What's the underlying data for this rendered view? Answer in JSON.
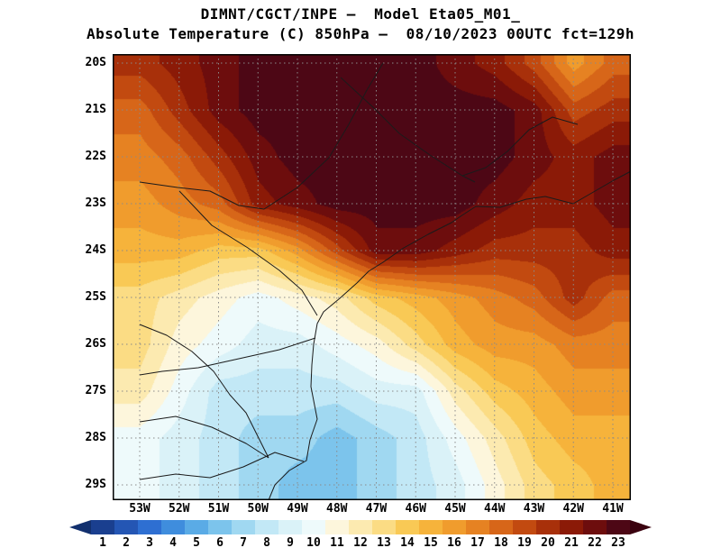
{
  "title": {
    "line1": "DIMNT/CGCT/INPE —  Model Eta05_M01_",
    "line2": "Absolute Temperature (C) 850hPa —  08/10/2023 00UTC fct=129h"
  },
  "map": {
    "lat_labels": [
      "20S",
      "21S",
      "22S",
      "23S",
      "24S",
      "25S",
      "26S",
      "27S",
      "28S",
      "29S"
    ],
    "lon_labels": [
      "53W",
      "52W",
      "51W",
      "50W",
      "49W",
      "48W",
      "47W",
      "46W",
      "45W",
      "44W",
      "43W",
      "42W",
      "41W"
    ]
  },
  "colorbar": {
    "values": [
      1,
      2,
      3,
      4,
      5,
      6,
      7,
      8,
      9,
      10,
      11,
      12,
      13,
      14,
      15,
      16,
      17,
      18,
      19,
      20,
      21,
      22,
      23
    ],
    "colors": [
      "#1a3f8f",
      "#2456b4",
      "#2e6fd2",
      "#3f8ddd",
      "#5aabe6",
      "#7cc4ec",
      "#a0d8f1",
      "#c2e8f6",
      "#daf2f8",
      "#eefafb",
      "#fdf6dc",
      "#fceab0",
      "#fbdc84",
      "#f9c955",
      "#f6b33b",
      "#f09c2d",
      "#e68222",
      "#d76619",
      "#c24a10",
      "#a8300a",
      "#8b1a07",
      "#6d0d0d",
      "#4d0715"
    ],
    "below_min_color": "#12306e",
    "above_max_color": "#3a020f"
  },
  "chart_data": {
    "type": "heatmap",
    "title": "Absolute Temperature (C) 850hPa",
    "institution": "DIMNT/CGCT/INPE",
    "model": "Eta05_M01_",
    "valid_time": "08/10/2023 00UTC",
    "forecast": "fct=129h",
    "units": "C",
    "colorbar_levels": [
      1,
      2,
      3,
      4,
      5,
      6,
      7,
      8,
      9,
      10,
      11,
      12,
      13,
      14,
      15,
      16,
      17,
      18,
      19,
      20,
      21,
      22,
      23
    ],
    "legend_position": "bottom",
    "grid_on": true,
    "grid": {
      "lats": [
        "20S",
        "21S",
        "22S",
        "23S",
        "24S",
        "25S",
        "26S",
        "27S",
        "28S",
        "29S"
      ],
      "lons": [
        "53W",
        "52W",
        "51W",
        "50W",
        "49W",
        "48W",
        "47W",
        "46W",
        "45W",
        "44W",
        "43W",
        "42W",
        "41W"
      ],
      "values": [
        [
          20,
          21,
          22,
          23,
          23,
          23,
          23,
          23,
          22,
          21,
          19,
          16,
          18
        ],
        [
          18,
          20,
          22,
          23,
          23,
          23,
          23,
          23,
          23,
          23,
          22,
          19,
          20
        ],
        [
          17,
          18,
          20,
          22,
          23,
          23,
          23,
          23,
          23,
          23,
          22,
          21,
          22
        ],
        [
          16,
          17,
          18,
          21,
          22,
          23,
          23,
          23,
          23,
          22,
          21,
          21,
          22
        ],
        [
          15,
          15,
          14,
          14,
          16,
          19,
          22,
          22,
          21,
          20,
          20,
          20,
          21
        ],
        [
          13,
          12,
          11,
          10,
          11,
          12,
          14,
          15,
          16,
          17,
          18,
          20,
          18
        ],
        [
          13,
          11,
          10,
          9,
          9,
          10,
          11,
          13,
          15,
          16,
          16,
          17,
          17
        ],
        [
          12,
          10,
          8,
          8,
          8,
          8,
          9,
          9,
          12,
          14,
          15,
          16,
          16
        ],
        [
          10,
          9,
          8,
          7,
          7,
          6,
          7,
          8,
          10,
          12,
          14,
          15,
          15
        ],
        [
          10,
          9,
          8,
          7,
          6,
          6,
          7,
          8,
          9,
          11,
          13,
          14,
          15
        ]
      ]
    }
  }
}
